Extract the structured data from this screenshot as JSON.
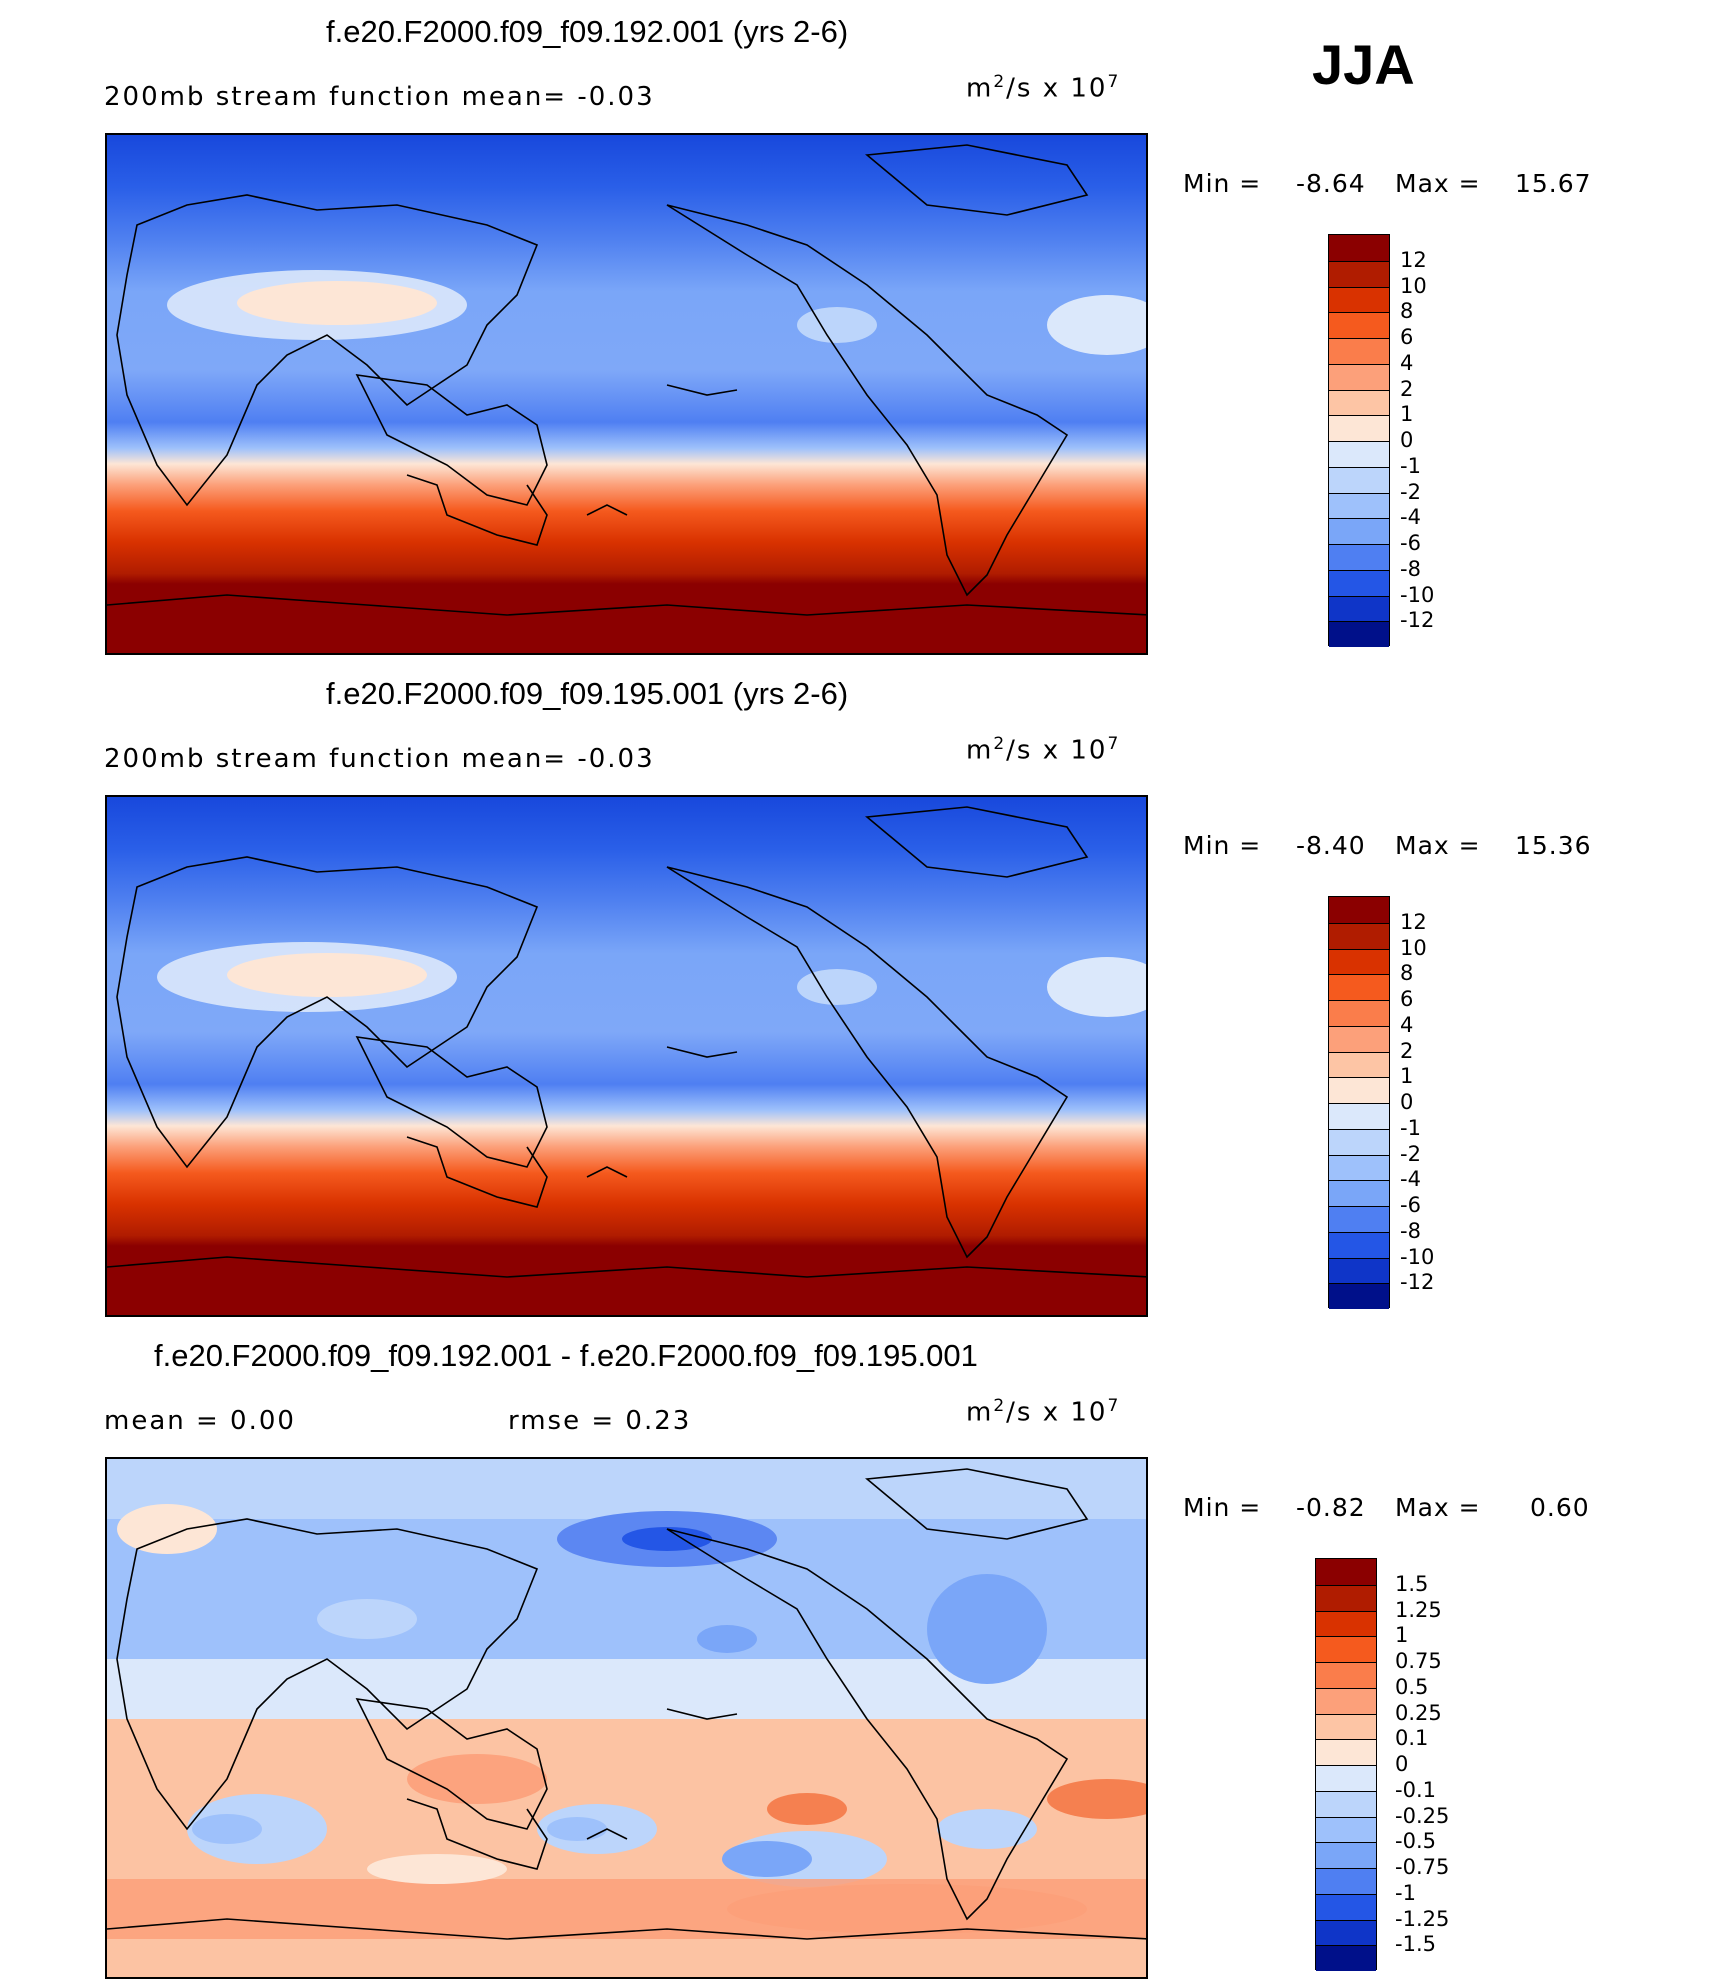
{
  "season": "JJA",
  "panels": [
    {
      "title": "f.e20.F2000.f09_f09.192.001 (yrs 2-6)",
      "left_text": "200mb stream function   mean=  -0.03",
      "right_text": "",
      "units": "m",
      "units_tail": "/s x 10",
      "min_label": "Min =",
      "min_value": "-8.64",
      "max_label": "Max =",
      "max_value": "15.67",
      "colorbar": {
        "labels": [
          "12",
          "10",
          "8",
          "6",
          "4",
          "2",
          "1",
          "0",
          "-1",
          "-2",
          "-4",
          "-6",
          "-8",
          "-10",
          "-12"
        ],
        "colors": [
          "#8b0000",
          "#b01c00",
          "#d93200",
          "#f55a1e",
          "#fa7d4b",
          "#fca07a",
          "#fdc5a5",
          "#fde6d6",
          "#dbe8fb",
          "#bcd5fb",
          "#9ec1fb",
          "#7aa6f8",
          "#4f7ff2",
          "#2456e6",
          "#0f35c8",
          "#00108a"
        ]
      },
      "map_colors": {
        "south_max": "#8b0000"
      }
    },
    {
      "title": "f.e20.F2000.f09_f09.195.001 (yrs 2-6)",
      "left_text": "200mb stream function   mean=  -0.03",
      "right_text": "",
      "units": "m",
      "units_tail": "/s x 10",
      "min_label": "Min =",
      "min_value": "-8.40",
      "max_label": "Max =",
      "max_value": "15.36",
      "colorbar": {
        "labels": [
          "12",
          "10",
          "8",
          "6",
          "4",
          "2",
          "1",
          "0",
          "-1",
          "-2",
          "-4",
          "-6",
          "-8",
          "-10",
          "-12"
        ],
        "colors": [
          "#8b0000",
          "#b01c00",
          "#d93200",
          "#f55a1e",
          "#fa7d4b",
          "#fca07a",
          "#fdc5a5",
          "#fde6d6",
          "#dbe8fb",
          "#bcd5fb",
          "#9ec1fb",
          "#7aa6f8",
          "#4f7ff2",
          "#2456e6",
          "#0f35c8",
          "#00108a"
        ]
      },
      "map_colors": {
        "south_max": "#8b0000"
      }
    },
    {
      "title": "f.e20.F2000.f09_f09.192.001 - f.e20.F2000.f09_f09.195.001",
      "left_text": "mean =    0.00",
      "right_text": "rmse =    0.23",
      "units": "m",
      "units_tail": "/s x 10",
      "min_label": "Min =",
      "min_value": "-0.82",
      "max_label": "Max =",
      "max_value": "0.60",
      "colorbar": {
        "labels": [
          "1.5",
          "1.25",
          "1",
          "0.75",
          "0.5",
          "0.25",
          "0.1",
          "0",
          "-0.1",
          "-0.25",
          "-0.5",
          "-0.75",
          "-1",
          "-1.25",
          "-1.5"
        ],
        "colors": [
          "#8b0000",
          "#b01c00",
          "#d93200",
          "#f55a1e",
          "#fa7d4b",
          "#fca07a",
          "#fdc5a5",
          "#fde6d6",
          "#dbe8fb",
          "#bcd5fb",
          "#9ec1fb",
          "#7aa6f8",
          "#4f7ff2",
          "#2456e6",
          "#0f35c8",
          "#00108a"
        ]
      },
      "map_colors": {
        "south_max": "#f8b493"
      }
    }
  ]
}
